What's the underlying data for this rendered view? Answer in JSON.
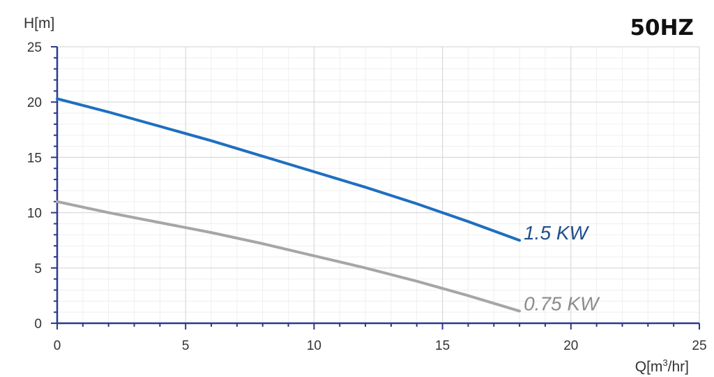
{
  "chart_data": {
    "type": "line",
    "title": "50HZ",
    "xlabel": {
      "main": "Q[m",
      "sup": "3",
      "rest": "/hr]"
    },
    "ylabel": "H[m]",
    "xlim": [
      0,
      25
    ],
    "ylim": [
      0,
      25
    ],
    "xticks": [
      0,
      5,
      10,
      15,
      20,
      25
    ],
    "yticks": [
      0,
      5,
      10,
      15,
      20,
      25
    ],
    "x_minor_step": 1,
    "y_minor_step": 1,
    "grid": true,
    "axis_color": "#2b3a8c",
    "grid_major_color": "#d9d9d9",
    "grid_minor_color": "#efefef",
    "series": [
      {
        "name": "1.5 KW",
        "color": "#1f6fbf",
        "label_color": "#1f4e8c",
        "x": [
          0,
          2,
          4,
          6,
          8,
          10,
          12,
          14,
          16,
          18
        ],
        "y": [
          20.3,
          19.1,
          17.8,
          16.5,
          15.1,
          13.7,
          12.3,
          10.8,
          9.2,
          7.5
        ]
      },
      {
        "name": "0.75 KW",
        "color": "#a6a6a6",
        "label_color": "#8c8c8c",
        "x": [
          0,
          2,
          4,
          6,
          8,
          10,
          12,
          14,
          16,
          18
        ],
        "y": [
          11.0,
          10.0,
          9.1,
          8.2,
          7.2,
          6.1,
          5.0,
          3.8,
          2.5,
          1.1
        ]
      }
    ]
  }
}
